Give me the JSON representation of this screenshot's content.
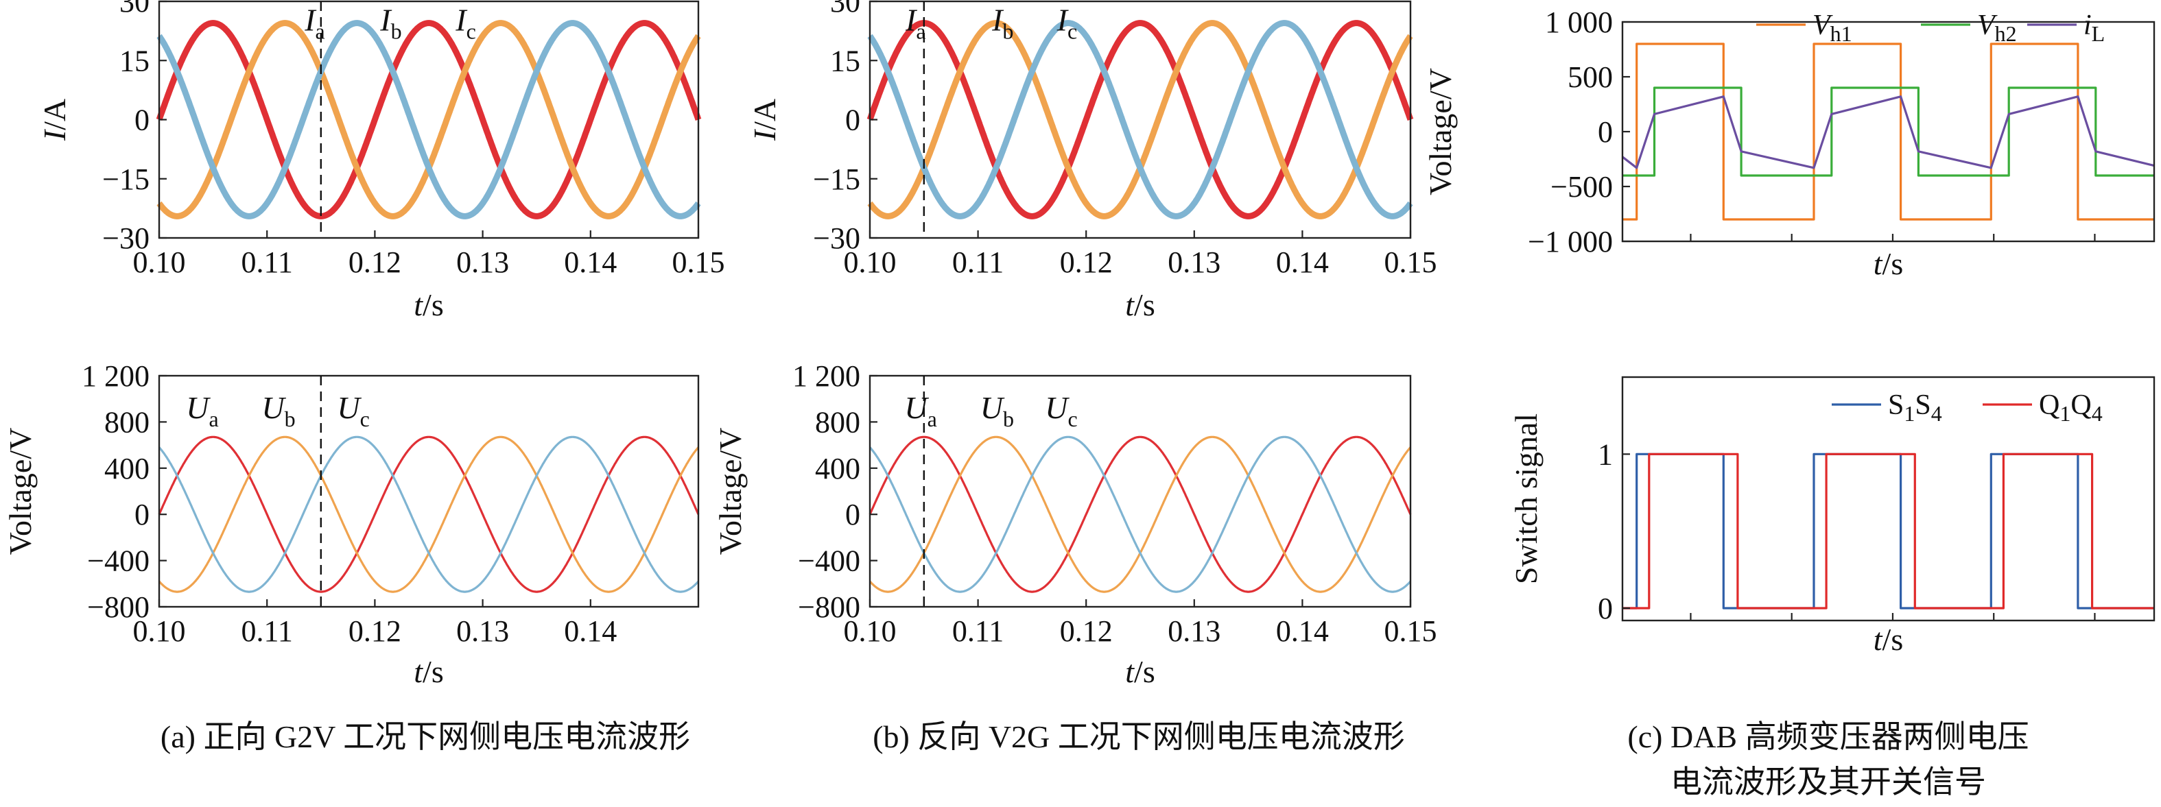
{
  "chart_data": [
    {
      "id": "a_top",
      "type": "line",
      "xlabel": "t/s",
      "ylabel": "I/A",
      "xlim": [
        0.1,
        0.15
      ],
      "ylim": [
        -30,
        30
      ],
      "xticks": [
        "0.10",
        "0.11",
        "0.12",
        "0.13",
        "0.14",
        "0.15"
      ],
      "yticks": [
        "30",
        "15",
        "0",
        "-15",
        "-30"
      ],
      "cursor_x": 0.115,
      "series": [
        {
          "name": "Ia",
          "amplitude": 24.5,
          "frequency_hz": 50,
          "phase_deg": 0,
          "color": "#e03035"
        },
        {
          "name": "Ib",
          "amplitude": 24.5,
          "frequency_hz": 50,
          "phase_deg": -120,
          "color": "#f0a34e"
        },
        {
          "name": "Ic",
          "amplitude": 24.5,
          "frequency_hz": 50,
          "phase_deg": 120,
          "color": "#7fb4d2"
        }
      ],
      "annotations": [
        {
          "base": "I",
          "sub": "a",
          "x": 0.1135,
          "y": 24
        },
        {
          "base": "I",
          "sub": "b",
          "x": 0.1205,
          "y": 24
        },
        {
          "base": "I",
          "sub": "c",
          "x": 0.1275,
          "y": 24
        }
      ]
    },
    {
      "id": "a_bottom",
      "type": "line",
      "xlabel": "t/s",
      "ylabel": "Voltage/V",
      "xlim": [
        0.1,
        0.15
      ],
      "ylim": [
        -800,
        1200
      ],
      "xticks": [
        "0.10",
        "0.11",
        "0.12",
        "0.13",
        "0.14"
      ],
      "yticks": [
        "1 200",
        "800",
        "400",
        "0",
        "-400",
        "-800"
      ],
      "cursor_x": 0.115,
      "series": [
        {
          "name": "Ua",
          "amplitude": 670,
          "frequency_hz": 50,
          "phase_deg": 0,
          "color": "#e03035"
        },
        {
          "name": "Ub",
          "amplitude": 670,
          "frequency_hz": 50,
          "phase_deg": -120,
          "color": "#f0a34e"
        },
        {
          "name": "Uc",
          "amplitude": 670,
          "frequency_hz": 50,
          "phase_deg": 120,
          "color": "#7fb4d2"
        }
      ],
      "annotations": [
        {
          "base": "U",
          "sub": "a",
          "x": 0.1025,
          "y": 880
        },
        {
          "base": "U",
          "sub": "b",
          "x": 0.1095,
          "y": 880
        },
        {
          "base": "U",
          "sub": "c",
          "x": 0.1165,
          "y": 880
        }
      ]
    },
    {
      "id": "b_top",
      "type": "line",
      "xlabel": "t/s",
      "ylabel": "I/A",
      "xlim": [
        0.1,
        0.15
      ],
      "ylim": [
        -30,
        30
      ],
      "xticks": [
        "0.10",
        "0.11",
        "0.12",
        "0.13",
        "0.14",
        "0.15"
      ],
      "yticks": [
        "30",
        "15",
        "0",
        "-15",
        "-30"
      ],
      "cursor_x": 0.105,
      "series": [
        {
          "name": "Ia",
          "amplitude": 24.5,
          "frequency_hz": 50,
          "phase_deg": 0,
          "color": "#e03035"
        },
        {
          "name": "Ib",
          "amplitude": 24.5,
          "frequency_hz": 50,
          "phase_deg": -120,
          "color": "#f0a34e"
        },
        {
          "name": "Ic",
          "amplitude": 24.5,
          "frequency_hz": 50,
          "phase_deg": 120,
          "color": "#7fb4d2"
        }
      ],
      "annotations": [
        {
          "base": "I",
          "sub": "a",
          "x": 0.1033,
          "y": 24
        },
        {
          "base": "I",
          "sub": "b",
          "x": 0.1113,
          "y": 24
        },
        {
          "base": "I",
          "sub": "c",
          "x": 0.1173,
          "y": 24
        }
      ]
    },
    {
      "id": "b_bottom",
      "type": "line",
      "xlabel": "t/s",
      "ylabel": "Voltage/V",
      "xlim": [
        0.1,
        0.15
      ],
      "ylim": [
        -800,
        1200
      ],
      "xticks": [
        "0.10",
        "0.11",
        "0.12",
        "0.13",
        "0.14",
        "0.15"
      ],
      "yticks": [
        "1 200",
        "800",
        "400",
        "0",
        "-400",
        "-800"
      ],
      "cursor_x": 0.105,
      "series": [
        {
          "name": "Ua",
          "amplitude": 670,
          "frequency_hz": 50,
          "phase_deg": 0,
          "color": "#e03035"
        },
        {
          "name": "Ub",
          "amplitude": 670,
          "frequency_hz": 50,
          "phase_deg": -120,
          "color": "#f0a34e"
        },
        {
          "name": "Uc",
          "amplitude": 670,
          "frequency_hz": 50,
          "phase_deg": 120,
          "color": "#7fb4d2"
        }
      ],
      "annotations": [
        {
          "base": "U",
          "sub": "a",
          "x": 0.1032,
          "y": 880
        },
        {
          "base": "U",
          "sub": "b",
          "x": 0.1102,
          "y": 880
        },
        {
          "base": "U",
          "sub": "c",
          "x": 0.1162,
          "y": 880
        }
      ]
    },
    {
      "id": "c_top",
      "type": "line",
      "xlabel": "t/s",
      "ylabel": "Voltage/V",
      "xlim": [
        0,
        3
      ],
      "ylim": [
        -1000,
        1000
      ],
      "xticks": [
        "",
        "",
        "",
        "",
        ""
      ],
      "yticks": [
        "1 000",
        "500",
        "0",
        "-500",
        "-1 000"
      ],
      "series": [
        {
          "name": "Vh1",
          "color": "#f07b22",
          "points": [
            [
              0,
              -800
            ],
            [
              0.08,
              -800
            ],
            [
              0.08,
              800
            ],
            [
              0.57,
              800
            ],
            [
              0.57,
              -800
            ],
            [
              1.08,
              -800
            ],
            [
              1.08,
              800
            ],
            [
              1.57,
              800
            ],
            [
              1.57,
              -800
            ],
            [
              2.08,
              -800
            ],
            [
              2.08,
              800
            ],
            [
              2.57,
              800
            ],
            [
              2.57,
              -800
            ],
            [
              3.0,
              -800
            ]
          ]
        },
        {
          "name": "Vh2",
          "color": "#3aad3a",
          "points": [
            [
              0,
              -400
            ],
            [
              0.18,
              -400
            ],
            [
              0.18,
              400
            ],
            [
              0.67,
              400
            ],
            [
              0.67,
              -400
            ],
            [
              1.18,
              -400
            ],
            [
              1.18,
              400
            ],
            [
              1.67,
              400
            ],
            [
              1.67,
              -400
            ],
            [
              2.18,
              -400
            ],
            [
              2.18,
              400
            ],
            [
              2.67,
              400
            ],
            [
              2.67,
              -400
            ],
            [
              3.0,
              -400
            ]
          ]
        },
        {
          "name": "iL",
          "color": "#6a4ea0",
          "points": [
            [
              0,
              -230
            ],
            [
              0.08,
              -330
            ],
            [
              0.18,
              160
            ],
            [
              0.57,
              320
            ],
            [
              0.67,
              -180
            ],
            [
              1.08,
              -330
            ],
            [
              1.18,
              160
            ],
            [
              1.57,
              320
            ],
            [
              1.67,
              -180
            ],
            [
              2.08,
              -330
            ],
            [
              2.18,
              160
            ],
            [
              2.57,
              320
            ],
            [
              2.67,
              -180
            ],
            [
              3.0,
              -310
            ]
          ]
        }
      ],
      "legend": [
        {
          "base": "V",
          "sub": "h1"
        },
        {
          "base": "V",
          "sub": "h2"
        },
        {
          "base": "i",
          "sub": "L"
        }
      ]
    },
    {
      "id": "c_bottom",
      "type": "line",
      "xlabel": "t/s",
      "ylabel": "Switch signal",
      "xlim": [
        0,
        3
      ],
      "ylim": [
        -0.08,
        1.5
      ],
      "xticks": [
        "",
        "",
        "",
        "",
        ""
      ],
      "yticks": [
        "1",
        "0"
      ],
      "series": [
        {
          "name": "S1S4",
          "color": "#2f5fa8",
          "points": [
            [
              0,
              0
            ],
            [
              0.08,
              0
            ],
            [
              0.08,
              1
            ],
            [
              0.57,
              1
            ],
            [
              0.57,
              0
            ],
            [
              1.08,
              0
            ],
            [
              1.08,
              1
            ],
            [
              1.57,
              1
            ],
            [
              1.57,
              0
            ],
            [
              2.08,
              0
            ],
            [
              2.08,
              1
            ],
            [
              2.57,
              1
            ],
            [
              2.57,
              0
            ],
            [
              3.0,
              0
            ]
          ]
        },
        {
          "name": "Q1Q4",
          "color": "#e02a2a",
          "points": [
            [
              0,
              0
            ],
            [
              0.15,
              0
            ],
            [
              0.15,
              1
            ],
            [
              0.65,
              1
            ],
            [
              0.65,
              0
            ],
            [
              1.15,
              0
            ],
            [
              1.15,
              1
            ],
            [
              1.65,
              1
            ],
            [
              1.65,
              0
            ],
            [
              2.15,
              0
            ],
            [
              2.15,
              1
            ],
            [
              2.65,
              1
            ],
            [
              2.65,
              0
            ],
            [
              3.0,
              0
            ]
          ]
        }
      ],
      "legend": [
        {
          "parts": [
            [
              "S",
              ""
            ],
            [
              "1",
              "sub"
            ],
            [
              "S",
              ""
            ],
            [
              "4",
              "sub"
            ]
          ]
        },
        {
          "parts": [
            [
              "Q",
              ""
            ],
            [
              "1",
              "sub"
            ],
            [
              "Q",
              ""
            ],
            [
              "4",
              "sub"
            ]
          ]
        }
      ]
    }
  ],
  "captions": {
    "a": "(a) 正向 G2V 工况下网侧电压电流波形",
    "b": "(b) 反向 V2G 工况下网侧电压电流波形",
    "c_line1": "(c) DAB 高频变压器两侧电压",
    "c_line2": "电流波形及其开关信号"
  }
}
